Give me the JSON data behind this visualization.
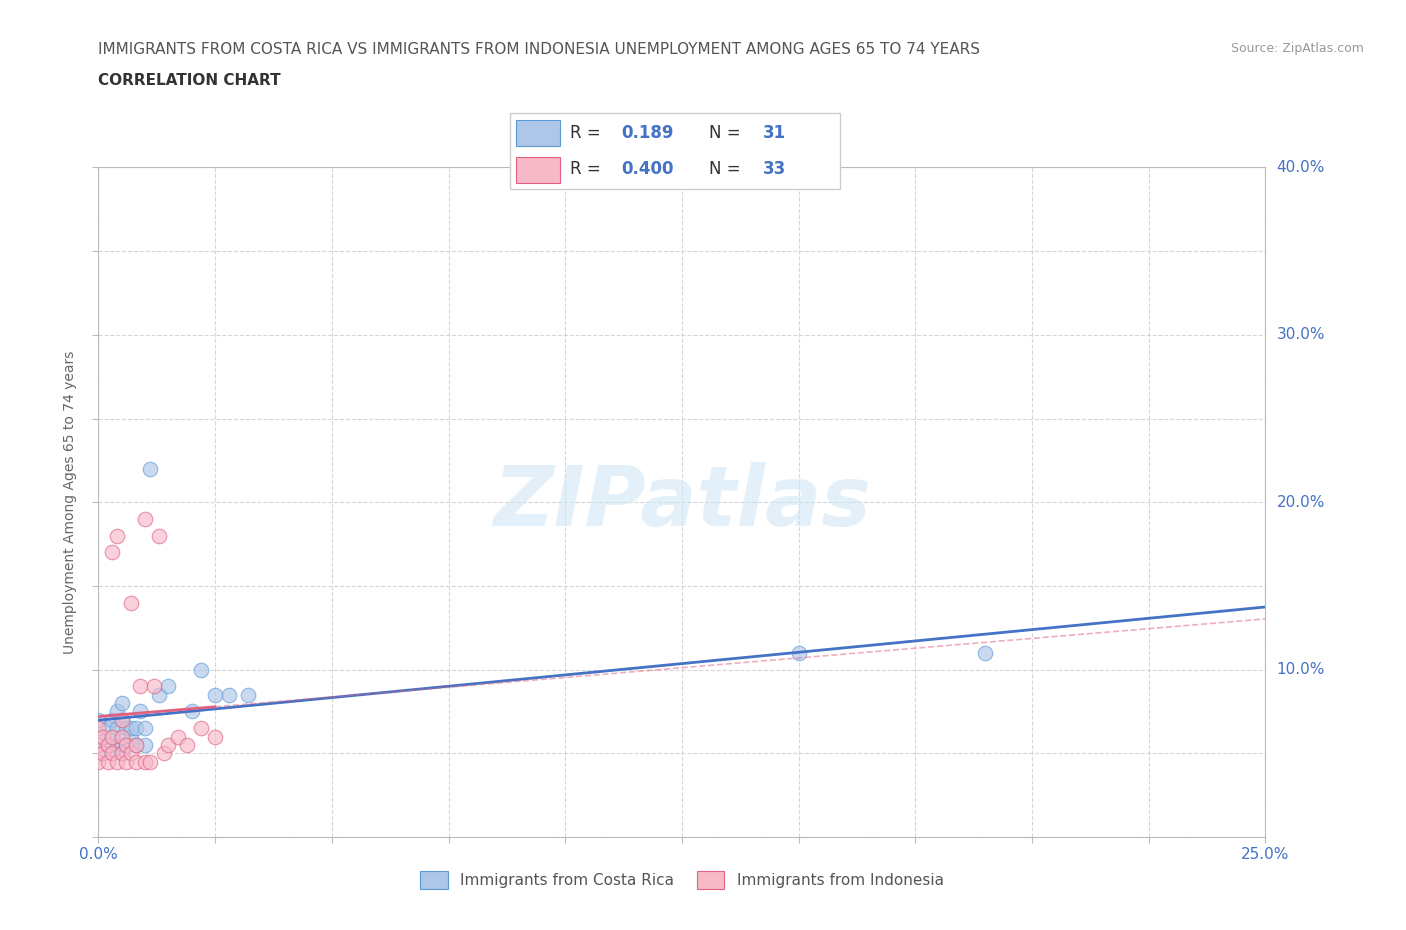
{
  "title_line1": "IMMIGRANTS FROM COSTA RICA VS IMMIGRANTS FROM INDONESIA UNEMPLOYMENT AMONG AGES 65 TO 74 YEARS",
  "title_line2": "CORRELATION CHART",
  "source_text": "Source: ZipAtlas.com",
  "ylabel": "Unemployment Among Ages 65 to 74 years",
  "xlim": [
    0.0,
    0.25
  ],
  "ylim": [
    0.0,
    0.4
  ],
  "xtick_positions": [
    0.0,
    0.025,
    0.05,
    0.075,
    0.1,
    0.125,
    0.15,
    0.175,
    0.2,
    0.225,
    0.25
  ],
  "ytick_positions": [
    0.0,
    0.05,
    0.1,
    0.15,
    0.2,
    0.25,
    0.3,
    0.35,
    0.4
  ],
  "ytick_labels_right": [
    "",
    "",
    "10.0%",
    "",
    "20.0%",
    "",
    "30.0%",
    "",
    "40.0%"
  ],
  "costa_rica_fill": "#aec6e8",
  "costa_rica_edge": "#5b9bd5",
  "indonesia_fill": "#f7b8c8",
  "indonesia_edge": "#e06080",
  "costa_rica_line_color": "#4472c4",
  "indonesia_line_color": "#e06080",
  "watermark": "ZIPatlas",
  "legend_label1": "Immigrants from Costa Rica",
  "legend_label2": "Immigrants from Indonesia",
  "costa_rica_x": [
    0.0,
    0.0,
    0.0,
    0.002,
    0.002,
    0.003,
    0.003,
    0.003,
    0.004,
    0.004,
    0.004,
    0.005,
    0.005,
    0.005,
    0.005,
    0.006,
    0.006,
    0.007,
    0.007,
    0.008,
    0.008,
    0.009,
    0.01,
    0.01,
    0.011,
    0.013,
    0.015,
    0.02,
    0.022,
    0.025,
    0.028,
    0.032,
    0.15,
    0.19
  ],
  "costa_rica_y": [
    0.05,
    0.06,
    0.07,
    0.055,
    0.065,
    0.05,
    0.06,
    0.07,
    0.055,
    0.065,
    0.075,
    0.05,
    0.06,
    0.07,
    0.08,
    0.055,
    0.065,
    0.06,
    0.065,
    0.055,
    0.065,
    0.075,
    0.055,
    0.065,
    0.22,
    0.085,
    0.09,
    0.075,
    0.1,
    0.085,
    0.085,
    0.085,
    0.11,
    0.11
  ],
  "indonesia_x": [
    0.0,
    0.0,
    0.0,
    0.001,
    0.001,
    0.002,
    0.002,
    0.003,
    0.003,
    0.003,
    0.004,
    0.004,
    0.005,
    0.005,
    0.005,
    0.006,
    0.006,
    0.007,
    0.007,
    0.008,
    0.008,
    0.009,
    0.01,
    0.01,
    0.011,
    0.012,
    0.013,
    0.014,
    0.015,
    0.017,
    0.019,
    0.022,
    0.025
  ],
  "indonesia_y": [
    0.045,
    0.055,
    0.065,
    0.05,
    0.06,
    0.045,
    0.055,
    0.05,
    0.06,
    0.17,
    0.045,
    0.18,
    0.05,
    0.06,
    0.07,
    0.045,
    0.055,
    0.05,
    0.14,
    0.045,
    0.055,
    0.09,
    0.045,
    0.19,
    0.045,
    0.09,
    0.18,
    0.05,
    0.055,
    0.06,
    0.055,
    0.065,
    0.06
  ],
  "title_fontsize": 11,
  "subtitle_fontsize": 11,
  "tick_fontsize": 11,
  "ylabel_fontsize": 10,
  "source_fontsize": 9,
  "legend_fontsize": 11,
  "watermark_fontsize": 60,
  "scatter_size": 110,
  "scatter_alpha": 0.65,
  "line_width": 2.0
}
